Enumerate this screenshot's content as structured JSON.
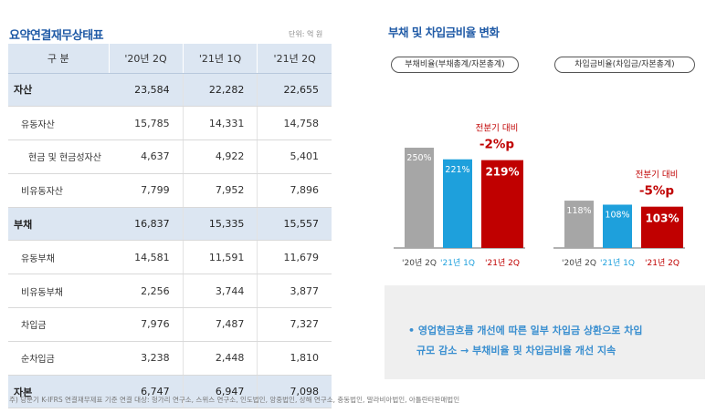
{
  "left": {
    "title": "요약연결재무상태표",
    "unit": "단위: 억 원",
    "headers": [
      "구 분",
      "'20년 2Q",
      "'21년 1Q",
      "'21년 2Q"
    ],
    "rows": [
      {
        "label": "자산",
        "level": "major",
        "values": [
          "23,584",
          "22,282",
          "22,655"
        ]
      },
      {
        "label": "유동자산",
        "level": "lvl1",
        "values": [
          "15,785",
          "14,331",
          "14,758"
        ]
      },
      {
        "label": "현금 및 현금성자산",
        "level": "lvl2",
        "values": [
          "4,637",
          "4,922",
          "5,401"
        ]
      },
      {
        "label": "비유동자산",
        "level": "lvl1",
        "values": [
          "7,799",
          "7,952",
          "7,896"
        ]
      },
      {
        "label": "부채",
        "level": "major",
        "values": [
          "16,837",
          "15,335",
          "15,557"
        ]
      },
      {
        "label": "유동부채",
        "level": "lvl1",
        "values": [
          "14,581",
          "11,591",
          "11,679"
        ]
      },
      {
        "label": "비유동부채",
        "level": "lvl1",
        "values": [
          "2,256",
          "3,744",
          "3,877"
        ]
      },
      {
        "label": "차입금",
        "level": "lvl1",
        "values": [
          "7,976",
          "7,487",
          "7,327"
        ]
      },
      {
        "label": "순차입금",
        "level": "lvl1",
        "values": [
          "3,238",
          "2,448",
          "1,810"
        ]
      },
      {
        "label": "자본",
        "level": "major",
        "values": [
          "6,747",
          "6,947",
          "7,098"
        ]
      }
    ],
    "footnote": "주) 당분기 K-IFRS 연결재무제표 기준 연결 대상: 헝가리 연구소, 스위스 연구소, 인도법인, 앙중법인, 상해 연구소, 충동법인, 말라비아법인, 아틀란타판매법인"
  },
  "right": {
    "title": "부채 및 차입금비율 변화",
    "pill_debt": "부채비율(부채총계/자본총계)",
    "pill_borrow": "차입금비율(차입금/자본총계)",
    "note_bullet": "•",
    "note_line1": "영업현금흐름 개선에 따른 일부 차입금 상환으로 차입",
    "note_line2": "규모 감소 → 부채비율 및 차입금비율 개선 지속"
  },
  "colors": {
    "gray": "#a6a6a6",
    "blue": "#1ea0dc",
    "red": "#c00000",
    "title_blue": "#1f5aa6",
    "header_fill": "#dce6f2"
  },
  "chart_data": [
    {
      "type": "bar",
      "title": "부채비율(부채총계/자본총계)",
      "categories": [
        "'20년 2Q",
        "'21년 1Q",
        "'21년 2Q"
      ],
      "values": [
        250,
        221,
        219
      ],
      "value_labels": [
        "250%",
        "221%",
        "219%"
      ],
      "annotation_label": "전분기 대비",
      "annotation_value": "-2%p",
      "ylim": [
        0,
        300
      ]
    },
    {
      "type": "bar",
      "title": "차입금비율(차입금/자본총계)",
      "categories": [
        "'20년 2Q",
        "'21년 1Q",
        "'21년 2Q"
      ],
      "values": [
        118,
        108,
        103
      ],
      "value_labels": [
        "118%",
        "108%",
        "103%"
      ],
      "annotation_label": "전분기 대비",
      "annotation_value": "-5%p",
      "ylim": [
        0,
        300
      ]
    }
  ]
}
